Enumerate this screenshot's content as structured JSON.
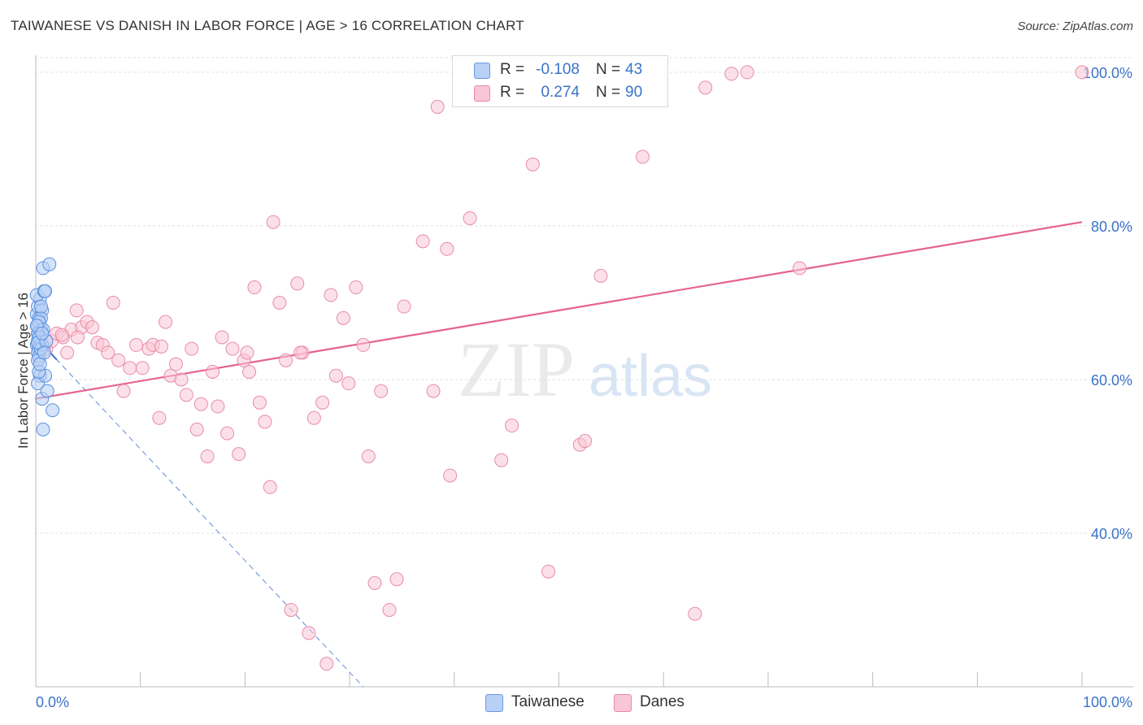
{
  "title": "TAIWANESE VS DANISH IN LABOR FORCE | AGE > 16 CORRELATION CHART",
  "source": "Source: ZipAtlas.com",
  "watermark": {
    "zip": "ZIP",
    "atlas": "atlas"
  },
  "legend": {
    "series": [
      {
        "name": "Taiwanese",
        "r_label": "R =",
        "r_value": "-0.108",
        "n_label": "N =",
        "n_value": "43",
        "fill": "#b8d0f5",
        "stroke": "#6a9be0"
      },
      {
        "name": "Danes",
        "r_label": "R =",
        "r_value": "0.274",
        "n_label": "N =",
        "n_value": "90",
        "fill": "#f9c6d6",
        "stroke": "#e98aa8"
      }
    ]
  },
  "colors": {
    "taiwanese_fill": "#b8d0f5",
    "taiwanese_stroke": "#5b8fde",
    "taiwanese_line": "#3b6fc9",
    "danes_fill": "#f9c6d6",
    "danes_stroke": "#e78ca9",
    "danes_line": "#e5628f",
    "axis_label_color": "#3a73c8",
    "grid": "#e0e0e0"
  },
  "chart_data": {
    "type": "scatter",
    "title": "TAIWANESE VS DANISH IN LABOR FORCE | AGE > 16 CORRELATION CHART",
    "xlabel": "",
    "ylabel": "In Labor Force | Age > 16",
    "xlim": [
      0,
      100
    ],
    "ylim": [
      20,
      102
    ],
    "x_tick_labels": [
      "0.0%",
      "100.0%"
    ],
    "y_ticks": [
      40,
      60,
      80,
      100
    ],
    "y_tick_labels": [
      "40.0%",
      "60.0%",
      "80.0%",
      "100.0%"
    ],
    "series": [
      {
        "name": "Taiwanese",
        "points": [
          [
            0.1,
            68.5
          ],
          [
            0.2,
            67.0
          ],
          [
            0.3,
            66.0
          ],
          [
            0.2,
            65.0
          ],
          [
            0.1,
            64.5
          ],
          [
            0.3,
            64.0
          ],
          [
            0.4,
            65.5
          ],
          [
            0.2,
            63.5
          ],
          [
            0.5,
            66.5
          ],
          [
            0.3,
            68.0
          ],
          [
            0.2,
            69.5
          ],
          [
            0.4,
            70.5
          ],
          [
            0.1,
            71.0
          ],
          [
            0.6,
            69.0
          ],
          [
            0.5,
            68.0
          ],
          [
            0.3,
            67.5
          ],
          [
            0.7,
            66.5
          ],
          [
            0.2,
            66.0
          ],
          [
            0.4,
            65.0
          ],
          [
            0.6,
            64.5
          ],
          [
            0.3,
            63.0
          ],
          [
            0.2,
            62.5
          ],
          [
            0.5,
            64.0
          ],
          [
            0.8,
            71.5
          ],
          [
            0.7,
            74.5
          ],
          [
            1.3,
            75.0
          ],
          [
            0.9,
            71.5
          ],
          [
            0.4,
            60.5
          ],
          [
            0.2,
            59.5
          ],
          [
            0.6,
            57.5
          ],
          [
            1.1,
            58.5
          ],
          [
            1.6,
            56.0
          ],
          [
            0.7,
            53.5
          ],
          [
            0.9,
            60.5
          ],
          [
            0.3,
            61.0
          ],
          [
            0.1,
            67.0
          ],
          [
            0.5,
            69.5
          ],
          [
            0.3,
            65.5
          ],
          [
            0.2,
            64.8
          ],
          [
            1.0,
            65.0
          ],
          [
            0.4,
            62.0
          ],
          [
            0.8,
            63.5
          ],
          [
            0.6,
            66.0
          ]
        ],
        "trend": {
          "x0": 0,
          "y0": 65.5,
          "x1": 31.3,
          "y1": 20,
          "solid_until_x": 2.0
        }
      },
      {
        "name": "Danes",
        "points": [
          [
            1.0,
            64.0
          ],
          [
            1.5,
            65.0
          ],
          [
            2.0,
            66.0
          ],
          [
            2.6,
            65.5
          ],
          [
            3.0,
            63.5
          ],
          [
            3.4,
            66.5
          ],
          [
            3.9,
            69.0
          ],
          [
            4.4,
            66.8
          ],
          [
            4.9,
            67.5
          ],
          [
            5.4,
            66.8
          ],
          [
            5.9,
            64.8
          ],
          [
            6.4,
            64.5
          ],
          [
            6.9,
            63.5
          ],
          [
            7.4,
            70.0
          ],
          [
            7.9,
            62.5
          ],
          [
            8.4,
            58.5
          ],
          [
            9.0,
            61.5
          ],
          [
            9.6,
            64.5
          ],
          [
            10.2,
            61.5
          ],
          [
            10.8,
            64.0
          ],
          [
            11.2,
            64.5
          ],
          [
            11.8,
            55.0
          ],
          [
            12.4,
            67.5
          ],
          [
            12.9,
            60.5
          ],
          [
            13.4,
            62.0
          ],
          [
            13.9,
            60.0
          ],
          [
            14.4,
            58.0
          ],
          [
            14.9,
            64.0
          ],
          [
            15.4,
            53.5
          ],
          [
            15.8,
            56.8
          ],
          [
            16.4,
            50.0
          ],
          [
            16.9,
            61.0
          ],
          [
            17.4,
            56.5
          ],
          [
            17.8,
            65.5
          ],
          [
            18.3,
            53.0
          ],
          [
            18.8,
            64.0
          ],
          [
            19.4,
            50.3
          ],
          [
            19.9,
            62.5
          ],
          [
            20.4,
            61.0
          ],
          [
            20.9,
            72.0
          ],
          [
            21.4,
            57.0
          ],
          [
            21.9,
            54.5
          ],
          [
            22.4,
            46.0
          ],
          [
            22.7,
            80.5
          ],
          [
            23.3,
            70.0
          ],
          [
            23.9,
            62.5
          ],
          [
            24.4,
            30.0
          ],
          [
            25.0,
            72.5
          ],
          [
            25.5,
            63.5
          ],
          [
            26.1,
            27.0
          ],
          [
            26.6,
            55.0
          ],
          [
            27.4,
            57.0
          ],
          [
            27.8,
            23.0
          ],
          [
            28.2,
            71.0
          ],
          [
            28.7,
            60.5
          ],
          [
            29.4,
            68.0
          ],
          [
            29.9,
            59.5
          ],
          [
            30.6,
            72.0
          ],
          [
            31.3,
            64.5
          ],
          [
            31.8,
            50.0
          ],
          [
            32.4,
            33.5
          ],
          [
            33.0,
            58.5
          ],
          [
            33.8,
            30.0
          ],
          [
            34.5,
            34.0
          ],
          [
            35.2,
            69.5
          ],
          [
            37.0,
            78.0
          ],
          [
            38.0,
            58.5
          ],
          [
            38.4,
            95.5
          ],
          [
            39.3,
            77.0
          ],
          [
            39.6,
            47.5
          ],
          [
            41.5,
            81.0
          ],
          [
            44.5,
            49.5
          ],
          [
            45.5,
            54.0
          ],
          [
            47.5,
            88.0
          ],
          [
            49.0,
            35.0
          ],
          [
            52.0,
            51.5
          ],
          [
            52.5,
            52.0
          ],
          [
            54.0,
            73.5
          ],
          [
            58.0,
            89.0
          ],
          [
            63.0,
            29.5
          ],
          [
            64.0,
            98.0
          ],
          [
            66.5,
            99.8
          ],
          [
            68.0,
            100.0
          ],
          [
            73.0,
            74.5
          ],
          [
            100.0,
            100.0
          ],
          [
            25.3,
            63.5
          ],
          [
            20.2,
            63.5
          ],
          [
            4.0,
            65.5
          ],
          [
            12.0,
            64.3
          ],
          [
            2.5,
            65.8
          ]
        ],
        "trend": {
          "x0": 0,
          "y0": 57.5,
          "x1": 100,
          "y1": 80.5
        }
      }
    ]
  }
}
